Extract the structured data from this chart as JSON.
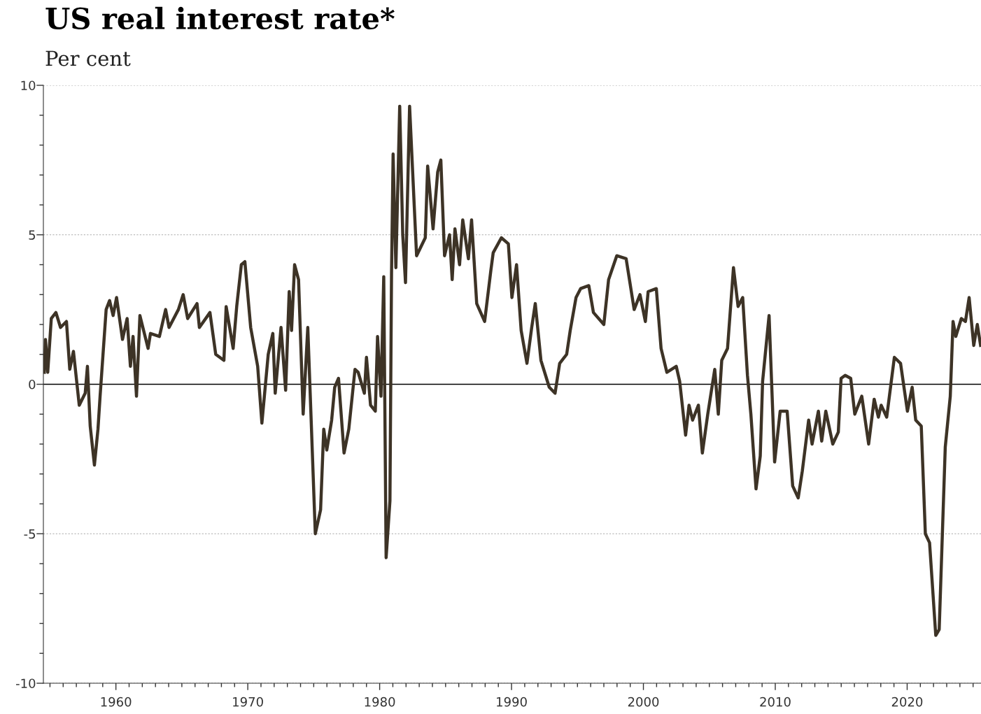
{
  "chart_data": {
    "type": "line",
    "title": "US real interest rate*",
    "subtitle": "Per cent",
    "x": [
      1954.57,
      1954.66,
      1954.83,
      1955.1,
      1955.45,
      1955.8,
      1956.25,
      1956.5,
      1956.78,
      1957.22,
      1957.67,
      1957.84,
      1958.05,
      1958.37,
      1958.64,
      1958.8,
      1959.26,
      1959.52,
      1959.79,
      1960.05,
      1960.5,
      1960.85,
      1961.1,
      1961.3,
      1961.56,
      1961.82,
      1962.44,
      1962.62,
      1963.3,
      1963.77,
      1964.03,
      1964.74,
      1965.1,
      1965.44,
      1966.15,
      1966.33,
      1967.13,
      1967.57,
      1968.19,
      1968.36,
      1968.89,
      1969.16,
      1969.51,
      1969.78,
      1970.22,
      1970.75,
      1971.07,
      1971.55,
      1971.9,
      1972.08,
      1972.52,
      1972.87,
      1973.14,
      1973.32,
      1973.55,
      1973.85,
      1974.2,
      1974.55,
      1975.12,
      1975.52,
      1975.76,
      1975.99,
      1976.36,
      1976.59,
      1976.88,
      1977.3,
      1977.66,
      1978.13,
      1978.37,
      1978.84,
      1979.0,
      1979.31,
      1979.67,
      1979.84,
      1980.1,
      1980.31,
      1980.49,
      1980.78,
      1980.9,
      1981.02,
      1981.23,
      1981.52,
      1981.75,
      1981.96,
      1982.27,
      1982.63,
      1982.8,
      1983.46,
      1983.64,
      1984.05,
      1984.4,
      1984.64,
      1984.92,
      1985.3,
      1985.5,
      1985.71,
      1986.06,
      1986.3,
      1986.73,
      1986.97,
      1987.36,
      1987.96,
      1988.43,
      1988.61,
      1989.23,
      1989.76,
      1990.03,
      1990.38,
      1990.73,
      1991.17,
      1991.53,
      1991.8,
      1992.23,
      1992.86,
      1993.3,
      1993.65,
      1994.18,
      1994.45,
      1994.89,
      1995.24,
      1995.86,
      1996.21,
      1997.0,
      1997.36,
      1997.98,
      1998.69,
      1999.3,
      1999.74,
      2000.15,
      2000.36,
      2000.98,
      2001.34,
      2001.78,
      2002.49,
      2002.75,
      2003.2,
      2003.46,
      2003.73,
      2004.17,
      2004.47,
      2004.88,
      2005.41,
      2005.68,
      2005.94,
      2006.38,
      2006.83,
      2007.18,
      2007.53,
      2007.89,
      2008.15,
      2008.54,
      2008.86,
      2009.04,
      2009.53,
      2009.95,
      2010.37,
      2010.9,
      2011.32,
      2011.74,
      2012.05,
      2012.53,
      2012.79,
      2013.27,
      2013.52,
      2013.83,
      2014.36,
      2014.78,
      2014.99,
      2015.3,
      2015.72,
      2016.03,
      2016.56,
      2017.08,
      2017.5,
      2017.82,
      2018.03,
      2018.45,
      2019.03,
      2019.5,
      2020.02,
      2020.38,
      2020.65,
      2021.07,
      2021.38,
      2021.7,
      2022.17,
      2022.43,
      2022.89,
      2023.27,
      2023.48,
      2023.69,
      2024.11,
      2024.42,
      2024.7,
      2025.05,
      2025.32,
      2025.57
    ],
    "series": [
      {
        "color": "#3d3326",
        "values": [
          0.4,
          1.5,
          0.4,
          2.2,
          2.4,
          1.9,
          2.1,
          0.5,
          1.1,
          -0.7,
          -0.3,
          0.6,
          -1.4,
          -2.7,
          -1.5,
          -0.4,
          2.5,
          2.8,
          2.3,
          2.9,
          1.5,
          2.2,
          0.6,
          1.6,
          -0.4,
          2.3,
          1.2,
          1.7,
          1.6,
          2.5,
          1.9,
          2.5,
          3.0,
          2.2,
          2.7,
          1.9,
          2.4,
          1.0,
          0.8,
          2.6,
          1.2,
          2.6,
          4.0,
          4.1,
          1.9,
          0.6,
          -1.3,
          1.0,
          1.7,
          -0.3,
          1.9,
          -0.2,
          3.1,
          1.8,
          4.0,
          3.5,
          -1.0,
          1.9,
          -5.0,
          -4.2,
          -1.5,
          -2.2,
          -1.2,
          -0.1,
          0.2,
          -2.3,
          -1.5,
          0.5,
          0.4,
          -0.3,
          0.9,
          -0.7,
          -0.9,
          1.6,
          -0.4,
          3.6,
          -5.8,
          -3.9,
          3.7,
          7.7,
          3.9,
          9.3,
          5.0,
          3.4,
          9.3,
          5.9,
          4.3,
          4.9,
          7.3,
          5.2,
          7.1,
          7.5,
          4.3,
          5.0,
          3.5,
          5.2,
          4.0,
          5.5,
          4.2,
          5.5,
          2.7,
          2.1,
          3.8,
          4.4,
          4.9,
          4.7,
          2.9,
          4.0,
          1.8,
          0.7,
          1.9,
          2.7,
          0.8,
          -0.1,
          -0.3,
          0.7,
          1.0,
          1.8,
          2.9,
          3.2,
          3.3,
          2.4,
          2.0,
          3.5,
          4.3,
          4.2,
          2.5,
          3.0,
          2.1,
          3.1,
          3.2,
          1.2,
          0.4,
          0.6,
          0.1,
          -1.7,
          -0.7,
          -1.2,
          -0.7,
          -2.3,
          -1.0,
          0.5,
          -1.0,
          0.8,
          1.2,
          3.9,
          2.6,
          2.9,
          0.3,
          -1.0,
          -3.5,
          -2.4,
          0.1,
          2.3,
          -2.6,
          -0.9,
          -0.9,
          -3.4,
          -3.8,
          -2.9,
          -1.2,
          -2.0,
          -0.9,
          -1.9,
          -0.9,
          -2.0,
          -1.6,
          0.2,
          0.3,
          0.2,
          -1.0,
          -0.4,
          -2.0,
          -0.5,
          -1.1,
          -0.7,
          -1.1,
          0.9,
          0.7,
          -0.9,
          -0.1,
          -1.2,
          -1.4,
          -5.0,
          -5.3,
          -8.4,
          -8.2,
          -2.1,
          -0.4,
          2.1,
          1.6,
          2.2,
          2.1,
          2.9,
          1.3,
          2.0,
          1.3
        ]
      }
    ],
    "xlim": [
      1954.5,
      2025.6
    ],
    "xticks": [
      {
        "value": 1955,
        "label": null
      },
      {
        "value": 1956,
        "label": null
      },
      {
        "value": 1957,
        "label": null
      },
      {
        "value": 1958,
        "label": null
      },
      {
        "value": 1959,
        "label": null
      },
      1960,
      {
        "value": 1961,
        "label": null
      },
      {
        "value": 1962,
        "label": null
      },
      {
        "value": 1963,
        "label": null
      },
      {
        "value": 1964,
        "label": null
      },
      {
        "value": 1965,
        "label": null
      },
      {
        "value": 1966,
        "label": null
      },
      {
        "value": 1967,
        "label": null
      },
      {
        "value": 1968,
        "label": null
      },
      {
        "value": 1969,
        "label": null
      },
      1970,
      {
        "value": 1971,
        "label": null
      },
      {
        "value": 1972,
        "label": null
      },
      {
        "value": 1973,
        "label": null
      },
      {
        "value": 1974,
        "label": null
      },
      {
        "value": 1975,
        "label": null
      },
      {
        "value": 1976,
        "label": null
      },
      {
        "value": 1977,
        "label": null
      },
      {
        "value": 1978,
        "label": null
      },
      {
        "value": 1979,
        "label": null
      },
      1980,
      {
        "value": 1981,
        "label": null
      },
      {
        "value": 1982,
        "label": null
      },
      {
        "value": 1983,
        "label": null
      },
      {
        "value": 1984,
        "label": null
      },
      {
        "value": 1985,
        "label": null
      },
      {
        "value": 1986,
        "label": null
      },
      {
        "value": 1987,
        "label": null
      },
      {
        "value": 1988,
        "label": null
      },
      {
        "value": 1989,
        "label": null
      },
      1990,
      {
        "value": 1991,
        "label": null
      },
      {
        "value": 1992,
        "label": null
      },
      {
        "value": 1993,
        "label": null
      },
      {
        "value": 1994,
        "label": null
      },
      {
        "value": 1995,
        "label": null
      },
      {
        "value": 1996,
        "label": null
      },
      {
        "value": 1997,
        "label": null
      },
      {
        "value": 1998,
        "label": null
      },
      {
        "value": 1999,
        "label": null
      },
      2000,
      {
        "value": 2001,
        "label": null
      },
      {
        "value": 2002,
        "label": null
      },
      {
        "value": 2003,
        "label": null
      },
      {
        "value": 2004,
        "label": null
      },
      {
        "value": 2005,
        "label": null
      },
      {
        "value": 2006,
        "label": null
      },
      {
        "value": 2007,
        "label": null
      },
      {
        "value": 2008,
        "label": null
      },
      {
        "value": 2009,
        "label": null
      },
      2010,
      {
        "value": 2011,
        "label": null
      },
      {
        "value": 2012,
        "label": null
      },
      {
        "value": 2013,
        "label": null
      },
      {
        "value": 2014,
        "label": null
      },
      {
        "value": 2015,
        "label": null
      },
      {
        "value": 2016,
        "label": null
      },
      {
        "value": 2017,
        "label": null
      },
      {
        "value": 2018,
        "label": null
      },
      {
        "value": 2019,
        "label": null
      },
      2020,
      {
        "value": 2021,
        "label": null
      },
      {
        "value": 2022,
        "label": null
      },
      {
        "value": 2023,
        "label": null
      },
      {
        "value": 2024,
        "label": null
      },
      {
        "value": 2025,
        "label": null
      }
    ],
    "ylim": [
      -10,
      10
    ],
    "yticks": [
      -10,
      {
        "value": -9,
        "label": null
      },
      {
        "value": -8,
        "label": null
      },
      {
        "value": -7,
        "label": null
      },
      {
        "value": -6,
        "label": null
      },
      -5,
      {
        "value": -4,
        "label": null
      },
      {
        "value": -3,
        "label": null
      },
      {
        "value": -2,
        "label": null
      },
      {
        "value": -1,
        "label": null
      },
      0,
      {
        "value": 1,
        "label": null
      },
      {
        "value": 2,
        "label": null
      },
      {
        "value": 3,
        "label": null
      },
      {
        "value": 4,
        "label": null
      },
      5,
      {
        "value": 6,
        "label": null
      },
      {
        "value": 7,
        "label": null
      },
      {
        "value": 8,
        "label": null
      },
      {
        "value": 9,
        "label": null
      },
      10
    ],
    "grid": "y",
    "ref_lines": [
      {
        "axis": "y",
        "value": 0,
        "color": "#000000",
        "line_style": "solid"
      }
    ],
    "line_style": "solid",
    "marker": "none",
    "legend": false
  }
}
